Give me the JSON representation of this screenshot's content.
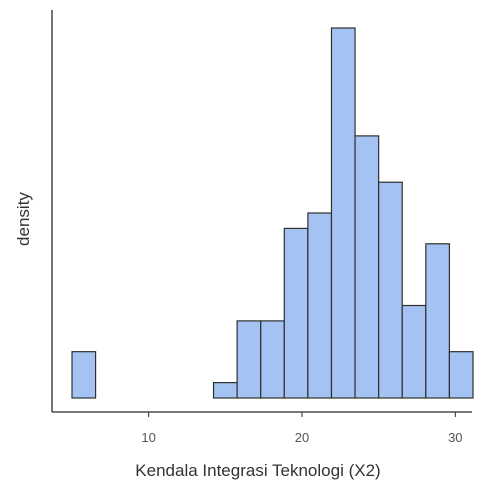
{
  "chart_data": {
    "type": "bar",
    "title": "",
    "xlabel": "Kendala Integrasi Teknologi (X2)",
    "ylabel": "density",
    "xlim": [
      4.6,
      31.2
    ],
    "ylim": [
      0,
      0.25
    ],
    "x_ticks": [
      10,
      20,
      30
    ],
    "bin_width": 1.5384615,
    "bins": [
      {
        "start": 5.0,
        "end": 6.5384615,
        "density": 0.0313
      },
      {
        "start": 6.5384615,
        "end": 8.0769231,
        "density": 0.0
      },
      {
        "start": 8.0769231,
        "end": 9.6153846,
        "density": 0.0
      },
      {
        "start": 9.6153846,
        "end": 11.1538462,
        "density": 0.0
      },
      {
        "start": 11.1538462,
        "end": 12.6923077,
        "density": 0.0
      },
      {
        "start": 12.6923077,
        "end": 14.2307692,
        "density": 0.0
      },
      {
        "start": 14.2307692,
        "end": 15.7692308,
        "density": 0.0104
      },
      {
        "start": 15.7692308,
        "end": 17.3076923,
        "density": 0.0521
      },
      {
        "start": 17.3076923,
        "end": 18.8461538,
        "density": 0.0521
      },
      {
        "start": 18.8461538,
        "end": 20.3846154,
        "density": 0.1146
      },
      {
        "start": 20.3846154,
        "end": 21.9230769,
        "density": 0.125
      },
      {
        "start": 21.9230769,
        "end": 23.4615385,
        "density": 0.25
      },
      {
        "start": 23.4615385,
        "end": 25.0,
        "density": 0.1771
      },
      {
        "start": 25.0,
        "end": 26.5384615,
        "density": 0.1458
      },
      {
        "start": 26.5384615,
        "end": 28.0769231,
        "density": 0.0625
      },
      {
        "start": 28.0769231,
        "end": 29.6153846,
        "density": 0.1042
      },
      {
        "start": 29.6153846,
        "end": 31.1538462,
        "density": 0.0313
      }
    ],
    "grid": false,
    "bar_fill": "#a4c3f2",
    "bar_stroke": "#2f2f2f"
  }
}
